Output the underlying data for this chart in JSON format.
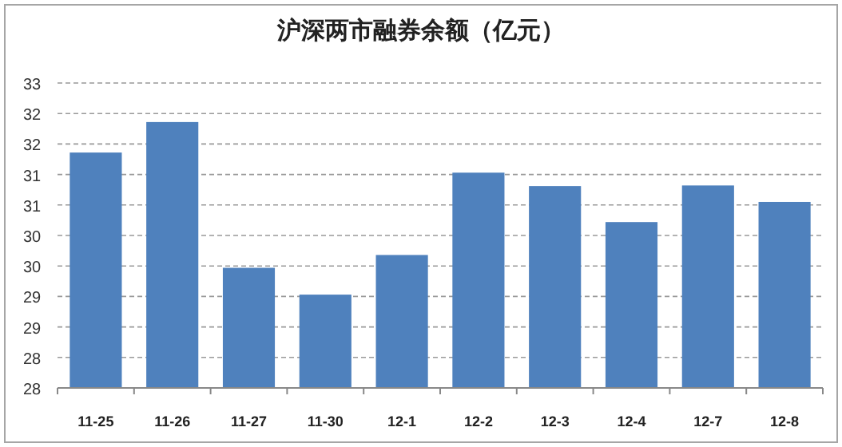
{
  "chart_data": {
    "type": "bar",
    "title": "沪深两市融券余额（亿元）",
    "categories": [
      "11-25",
      "11-26",
      "11-27",
      "11-30",
      "12-1",
      "12-2",
      "12-3",
      "12-4",
      "12-7",
      "12-8"
    ],
    "series": [
      {
        "color": "#4f81bd",
        "values": [
          31.36,
          31.86,
          29.47,
          29.03,
          29.68,
          31.03,
          30.81,
          30.22,
          30.82,
          30.55
        ]
      }
    ],
    "ylim": [
      27.5,
      32.5
    ],
    "yticks": [
      {
        "value": 27.5,
        "label": "28"
      },
      28,
      {
        "value": 28.5,
        "label": "29"
      },
      29,
      {
        "value": 29.5,
        "label": "30"
      },
      30,
      {
        "value": 30.5,
        "label": "31"
      },
      31,
      {
        "value": 31.5,
        "label": "32"
      },
      32,
      {
        "value": 32.5,
        "label": "33"
      }
    ],
    "grid": "y"
  }
}
